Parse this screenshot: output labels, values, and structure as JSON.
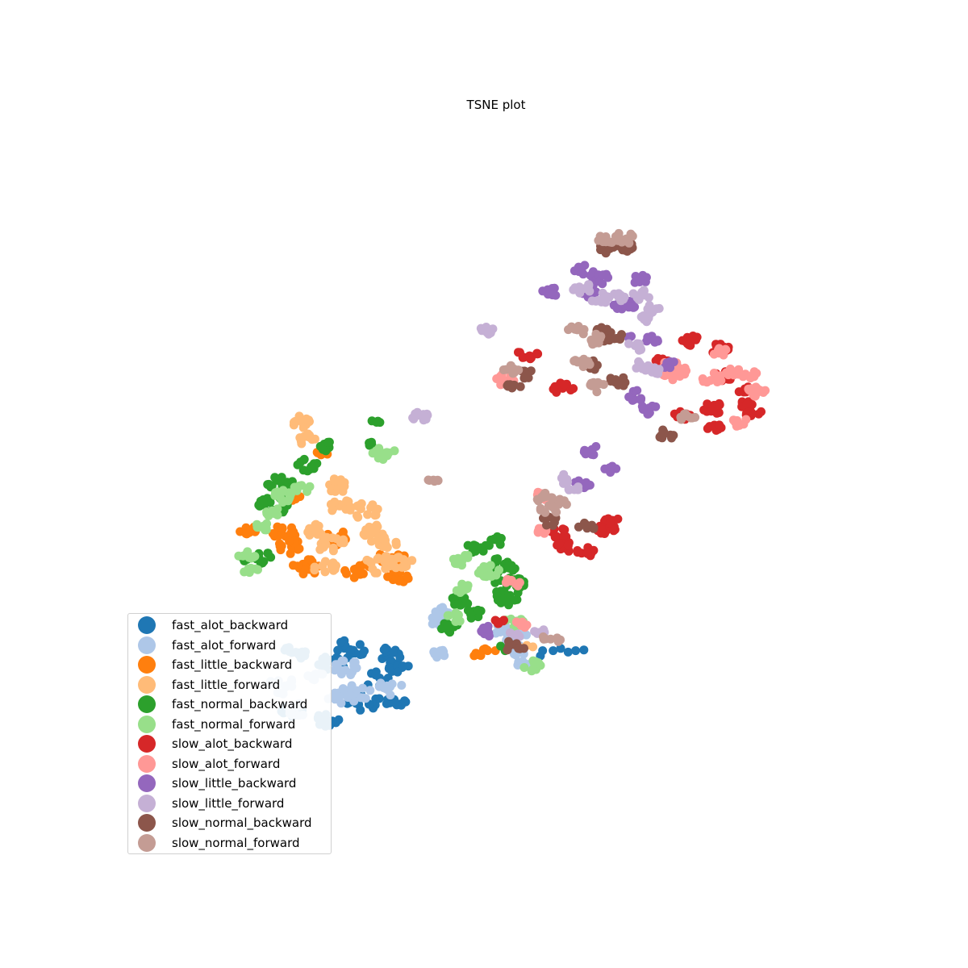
{
  "chart_data": {
    "type": "scatter",
    "title": "TSNE plot",
    "xlabel": "",
    "ylabel": "",
    "axes_visible": false,
    "grid": false,
    "legend_position": "lower-left",
    "xlim": [
      0,
      100
    ],
    "ylim": [
      0,
      100
    ],
    "series": [
      {
        "name": "fast_alot_backward",
        "color": "#1f77b4",
        "clusters": [
          [
            30,
            29.5,
            2.5
          ],
          [
            28,
            27.7,
            2
          ],
          [
            24.1,
            28.9,
            1.2
          ],
          [
            22.6,
            29.5,
            0.9
          ],
          [
            35.7,
            28.9,
            2
          ],
          [
            34.3,
            25.6,
            2
          ],
          [
            37,
            27,
            1.5
          ],
          [
            36.5,
            22.6,
            1.5
          ],
          [
            32.3,
            22.6,
            2.3
          ],
          [
            23.1,
            21.3,
            1.8
          ],
          [
            27.3,
            20,
            1.8
          ],
          [
            55.9,
            28.7,
            0.3
          ],
          [
            56.2,
            29.4,
            0.3
          ],
          [
            57.6,
            29.4,
            0.2
          ],
          [
            58.6,
            29.7,
            0.2
          ],
          [
            59.6,
            29.2,
            0.2
          ],
          [
            60.6,
            29.4,
            0.2
          ],
          [
            61.7,
            29.5,
            0.2
          ]
        ]
      },
      {
        "name": "fast_alot_forward",
        "color": "#aec7e8",
        "clusters": [
          [
            25.8,
            26.1,
            1.2
          ],
          [
            21.5,
            24.7,
            2
          ],
          [
            30.3,
            27.2,
            2
          ],
          [
            31.4,
            23.7,
            2
          ],
          [
            29.3,
            23.3,
            2
          ],
          [
            23.8,
            21.5,
            1.6
          ],
          [
            35.9,
            24.4,
            1.8
          ],
          [
            42.1,
            29.1,
            1.6
          ],
          [
            51.9,
            31.8,
            2.4
          ],
          [
            52.9,
            29.5,
            1.3
          ],
          [
            53.5,
            27.8,
            1
          ],
          [
            42.8,
            34.7,
            1
          ],
          [
            42.3,
            33.4,
            1.4
          ]
        ]
      },
      {
        "name": "fast_little_backward",
        "color": "#ff7f0e",
        "clusters": [
          [
            16.9,
            45.6,
            1.2
          ],
          [
            21.6,
            45.2,
            1.8
          ],
          [
            22.8,
            43.3,
            1.8
          ],
          [
            28.5,
            44.2,
            2.2
          ],
          [
            24.6,
            40.6,
            2
          ],
          [
            31.5,
            40.1,
            2
          ],
          [
            36.3,
            41.8,
            2
          ],
          [
            36.9,
            39.3,
            1.6
          ],
          [
            27.1,
            55.7,
            1
          ],
          [
            22.9,
            49.9,
            1
          ],
          [
            47.4,
            28.8,
            0.6
          ],
          [
            48.5,
            29.4,
            0.5
          ],
          [
            49.9,
            29.4,
            0.4
          ]
        ]
      },
      {
        "name": "fast_little_forward",
        "color": "#ffbb78",
        "clusters": [
          [
            24,
            59.9,
            1.6
          ],
          [
            24.7,
            57.6,
            1.3
          ],
          [
            28.9,
            51.2,
            1.4
          ],
          [
            29.3,
            48.6,
            1.6
          ],
          [
            28,
            43.6,
            2
          ],
          [
            25.8,
            45.5,
            1.7
          ],
          [
            33.6,
            45.1,
            2.2
          ],
          [
            35.5,
            44.1,
            1.7
          ],
          [
            34.6,
            40.9,
            2.2
          ],
          [
            27.1,
            40.6,
            1.6
          ],
          [
            36.9,
            41.5,
            2
          ],
          [
            29.3,
            51.9,
            1.2
          ],
          [
            32.4,
            48.1,
            2
          ],
          [
            53.2,
            29.8,
            0.4
          ],
          [
            54.1,
            30.1,
            0.4
          ],
          [
            54.9,
            29.9,
            0.3
          ]
        ]
      },
      {
        "name": "fast_normal_backward",
        "color": "#2ca02c",
        "clusters": [
          [
            20.5,
            48.8,
            2.2
          ],
          [
            21.2,
            51.6,
            1.8
          ],
          [
            24.5,
            54.1,
            1.8
          ],
          [
            18.8,
            49.2,
            1.2
          ],
          [
            16.4,
            41.7,
            1
          ],
          [
            19.1,
            41.7,
            1.4
          ],
          [
            27.6,
            56.6,
            1.2
          ],
          [
            33.5,
            57,
            0.9
          ],
          [
            34,
            60,
            0.6
          ],
          [
            46.8,
            34.4,
            1.4
          ],
          [
            47.7,
            43.1,
            1.6
          ],
          [
            50.2,
            44,
            1.1
          ],
          [
            45.3,
            36.1,
            1.4
          ],
          [
            43.7,
            32.4,
            1.4
          ],
          [
            50.6,
            40.6,
            2
          ],
          [
            51.8,
            38,
            2.2
          ],
          [
            51.3,
            36.2,
            1.6
          ],
          [
            52.5,
            38.5,
            1.3
          ],
          [
            51.2,
            29.4,
            0.2
          ],
          [
            50.6,
            30,
            0.2
          ]
        ]
      },
      {
        "name": "fast_normal_forward",
        "color": "#98df8a",
        "clusters": [
          [
            16.8,
            42.2,
            1.2
          ],
          [
            17.3,
            40.3,
            1.2
          ],
          [
            18.7,
            45.8,
            1.2
          ],
          [
            20.4,
            47.7,
            1.2
          ],
          [
            22.1,
            50.1,
            1.8
          ],
          [
            24.2,
            51.1,
            1.2
          ],
          [
            35.1,
            55.6,
            1.6
          ],
          [
            45.1,
            37.7,
            1.4
          ],
          [
            45.8,
            41.3,
            1.6
          ],
          [
            49.1,
            40,
            1.8
          ],
          [
            44.7,
            33.9,
            1.2
          ],
          [
            52.3,
            33.3,
            1.4
          ],
          [
            55.1,
            27.3,
            1.4
          ]
        ]
      },
      {
        "name": "slow_alot_backward",
        "color": "#d62728",
        "clusters": [
          [
            58.9,
            64.4,
            1.5
          ],
          [
            54.2,
            69.1,
            1.5
          ],
          [
            72.7,
            67.8,
            1.5
          ],
          [
            76.2,
            70.8,
            1.5
          ],
          [
            80.1,
            69.6,
            1.5
          ],
          [
            80.6,
            65.9,
            1.5
          ],
          [
            83.2,
            64.2,
            1.2
          ],
          [
            83.5,
            62.4,
            1.2
          ],
          [
            84.4,
            60.9,
            1.2
          ],
          [
            78.8,
            61.7,
            1.5
          ],
          [
            74.8,
            60.8,
            1.2
          ],
          [
            79.4,
            58.9,
            1.3
          ],
          [
            64.7,
            45.6,
            1.5
          ],
          [
            65.1,
            46.5,
            1.5
          ],
          [
            62,
            42.4,
            1.5
          ],
          [
            58.4,
            45.2,
            1.5
          ],
          [
            58.8,
            43.2,
            1.5
          ],
          [
            50.4,
            33.2,
            0.8
          ]
        ]
      },
      {
        "name": "slow_alot_forward",
        "color": "#ff9896",
        "clusters": [
          [
            51.2,
            65.6,
            1.5
          ],
          [
            78.8,
            65.7,
            1.5
          ],
          [
            81.6,
            66.7,
            1.2
          ],
          [
            74.5,
            66.8,
            1.3
          ],
          [
            79.9,
            69.1,
            1.1
          ],
          [
            83.7,
            66.2,
            1.1
          ],
          [
            84.1,
            64.1,
            1
          ],
          [
            85.3,
            63.8,
            1.2
          ],
          [
            82.5,
            59.8,
            1.2
          ],
          [
            73.3,
            67.5,
            1
          ],
          [
            73.3,
            65.9,
            1.2
          ],
          [
            56.2,
            50,
            1.3
          ],
          [
            56.1,
            45.6,
            1.2
          ],
          [
            51.9,
            38.4,
            1.3
          ],
          [
            53.8,
            32.8,
            0.6
          ],
          [
            53.2,
            33.2,
            0.5
          ]
        ]
      },
      {
        "name": "slow_little_backward",
        "color": "#9467bd",
        "clusters": [
          [
            57.4,
            77.3,
            1.3
          ],
          [
            61.5,
            80,
            1.6
          ],
          [
            63.9,
            78.8,
            1.6
          ],
          [
            62.6,
            76.9,
            1.3
          ],
          [
            67.2,
            75.6,
            1.6
          ],
          [
            69.5,
            78.8,
            1.3
          ],
          [
            70.8,
            70.8,
            1.2
          ],
          [
            73,
            67.6,
            1
          ],
          [
            68.1,
            75.1,
            0.5
          ],
          [
            68,
            71.1,
            0.5
          ],
          [
            70.5,
            61.6,
            1.3
          ],
          [
            68.6,
            63.4,
            1.3
          ],
          [
            62.4,
            56.1,
            1.3
          ],
          [
            61.5,
            51.7,
            1.3
          ],
          [
            65.1,
            53.5,
            1
          ],
          [
            48.7,
            31.8,
            1
          ],
          [
            48.6,
            32.5,
            0.6
          ]
        ]
      },
      {
        "name": "slow_little_forward",
        "color": "#c5b0d5",
        "clusters": [
          [
            48.8,
            72.1,
            1.1
          ],
          [
            39.7,
            60.7,
            1.4
          ],
          [
            61.5,
            77.7,
            1.3
          ],
          [
            63.9,
            76.4,
            1.3
          ],
          [
            65.9,
            76.5,
            1.2
          ],
          [
            69.3,
            76.8,
            1.3
          ],
          [
            71,
            75,
            1
          ],
          [
            70,
            73.7,
            1
          ],
          [
            68.3,
            69.8,
            1.2
          ],
          [
            70.6,
            66.7,
            1.2
          ],
          [
            69.5,
            67.5,
            1.2
          ],
          [
            60.1,
            51.4,
            1.3
          ],
          [
            59,
            52.5,
            0.8
          ],
          [
            52.7,
            31.7,
            0.9
          ],
          [
            55.9,
            31.8,
            1
          ]
        ]
      },
      {
        "name": "slow_normal_backward",
        "color": "#8c564b",
        "clusters": [
          [
            64.5,
            83.1,
            1.4
          ],
          [
            67.4,
            83.1,
            1.5
          ],
          [
            64.5,
            72.1,
            1.1
          ],
          [
            63.5,
            70.6,
            1.1
          ],
          [
            66,
            71.2,
            1.3
          ],
          [
            62.8,
            67.5,
            1.2
          ],
          [
            66.1,
            65.3,
            1.4
          ],
          [
            72.5,
            58.2,
            1.3
          ],
          [
            53.9,
            66.2,
            1.2
          ],
          [
            52.5,
            64.9,
            1.2
          ],
          [
            57.2,
            46.7,
            1.2
          ],
          [
            62,
            46,
            1.2
          ],
          [
            52,
            30.3,
            0.8
          ],
          [
            53.4,
            29.8,
            0.5
          ],
          [
            51.5,
            29.5,
            0.4
          ]
        ]
      },
      {
        "name": "slow_normal_forward",
        "color": "#c49c94",
        "clusters": [
          [
            64.8,
            84.3,
            1.3
          ],
          [
            67.1,
            84.4,
            1.4
          ],
          [
            60.6,
            72,
            1.3
          ],
          [
            63.1,
            70.9,
            1.3
          ],
          [
            61.6,
            67.9,
            1.3
          ],
          [
            63.3,
            64.6,
            1.3
          ],
          [
            75.6,
            60.5,
            1.1
          ],
          [
            52,
            66.8,
            1.1
          ],
          [
            41.7,
            52.4,
            0.9
          ],
          [
            56.6,
            49.7,
            1.3
          ],
          [
            58.5,
            49.2,
            1.3
          ],
          [
            57.1,
            48.3,
            1.3
          ],
          [
            57.9,
            31.1,
            0.8
          ],
          [
            56.8,
            31.1,
            0.6
          ],
          [
            58.3,
            30.6,
            0.4
          ]
        ]
      }
    ]
  }
}
